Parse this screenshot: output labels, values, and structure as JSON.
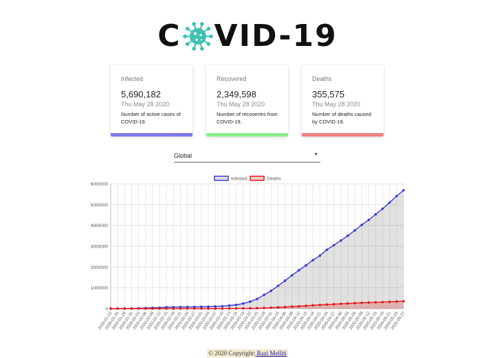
{
  "header": {
    "title_left": "C",
    "title_right": "VID-19",
    "logo_icon": "virus-icon",
    "logo_color": "#3fc1b4"
  },
  "cards": [
    {
      "label": "Infected",
      "value": "5,690,182",
      "date": "Thu May 28 2020",
      "description": "Number of active cases of COVID-19.",
      "color": "#7b7bea"
    },
    {
      "label": "Recovered",
      "value": "2,349,598",
      "date": "Thu May 28 2020",
      "description": "Number of recoveries from COVID-19.",
      "color": "#8aee8a"
    },
    {
      "label": "Deaths",
      "value": "355,575",
      "date": "Thu May 28 2020",
      "description": "Number of deaths caused by COVID-19.",
      "color": "#f08080"
    }
  ],
  "country_select": {
    "value": "Global"
  },
  "chart_data": {
    "type": "line",
    "x": [
      "2020-01-22",
      "2020-01-25",
      "2020-01-28",
      "2020-01-31",
      "2020-02-03",
      "2020-02-06",
      "2020-02-09",
      "2020-02-12",
      "2020-02-15",
      "2020-02-18",
      "2020-02-21",
      "2020-02-24",
      "2020-02-27",
      "2020-03-01",
      "2020-03-04",
      "2020-03-07",
      "2020-03-10",
      "2020-03-13",
      "2020-03-16",
      "2020-03-19",
      "2020-03-22",
      "2020-03-25",
      "2020-03-28",
      "2020-03-31",
      "2020-04-03",
      "2020-04-06",
      "2020-04-09",
      "2020-04-12",
      "2020-04-15",
      "2020-04-18",
      "2020-04-21",
      "2020-04-24",
      "2020-04-27",
      "2020-04-30",
      "2020-05-03",
      "2020-05-06",
      "2020-05-09",
      "2020-05-12",
      "2020-05-15",
      "2020-05-18",
      "2020-05-21",
      "2020-05-24",
      "2020-05-27"
    ],
    "series": [
      {
        "name": "Infected",
        "color": "#3a3ad6",
        "fill": "rgba(120,120,120,0.22)",
        "values": [
          555,
          2800,
          5600,
          9800,
          17400,
          28300,
          40200,
          45200,
          67100,
          73300,
          77000,
          79400,
          82800,
          88400,
          95100,
          105800,
          119100,
          145200,
          181500,
          242700,
          336000,
          467600,
          660700,
          857500,
          1095900,
          1345000,
          1601000,
          1846700,
          2078600,
          2329600,
          2545400,
          2829400,
          3047000,
          3272300,
          3506000,
          3760000,
          4023000,
          4262000,
          4534000,
          4801000,
          5102000,
          5409000,
          5690182
        ]
      },
      {
        "name": "Deaths",
        "color": "#e31a1a",
        "fill": "rgba(230,40,40,0.25)",
        "values": [
          17,
          56,
          132,
          213,
          427,
          565,
          908,
          1117,
          1666,
          2005,
          2250,
          2700,
          2810,
          2996,
          3254,
          3558,
          4262,
          5404,
          7126,
          11400,
          14700,
          21200,
          30800,
          42300,
          59000,
          74600,
          95800,
          114200,
          134200,
          160800,
          177600,
          197200,
          211400,
          233400,
          247700,
          264700,
          278800,
          290200,
          303100,
          317500,
          329300,
          343600,
          355575
        ]
      }
    ],
    "ylim": [
      0,
      6000000
    ],
    "yticks": [
      0,
      1000000,
      2000000,
      3000000,
      4000000,
      5000000,
      6000000
    ],
    "grid": true,
    "legend": "top-center"
  },
  "footer": {
    "text": "© 2020 Copyright:",
    "link": " Razi Melliti"
  }
}
